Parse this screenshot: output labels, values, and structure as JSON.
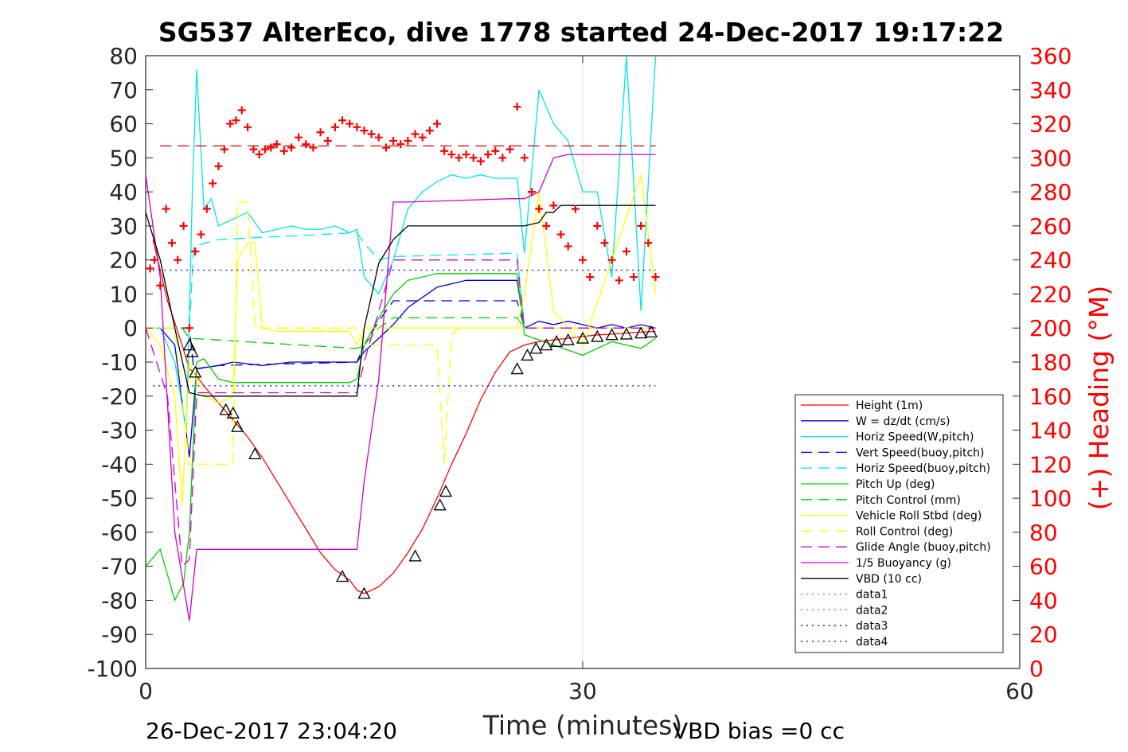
{
  "chart_data": {
    "type": "line",
    "title": "SG537 AlterEco, dive 1778 started 24-Dec-2017 19:17:22",
    "xlabel": "Time (minutes)",
    "ylabel_right": "(+) Heading (°M)",
    "xlim": [
      0,
      60
    ],
    "ylim_left": [
      -100,
      80
    ],
    "ylim_right": [
      0,
      360
    ],
    "x_ticks": [
      "0",
      "30",
      "60"
    ],
    "y_ticks_left": [
      "80",
      "70",
      "60",
      "50",
      "40",
      "30",
      "20",
      "10",
      "0",
      "-10",
      "-20",
      "-30",
      "-40",
      "-50",
      "-60",
      "-70",
      "-80",
      "-90",
      "-100"
    ],
    "y_ticks_right": [
      "360",
      "340",
      "320",
      "300",
      "280",
      "260",
      "240",
      "220",
      "200",
      "180",
      "160",
      "140",
      "120",
      "100",
      "80",
      "60",
      "40",
      "20",
      "0"
    ],
    "grid": "x-only at 30",
    "legend_position": "bottom-right",
    "footer_left": "26-Dec-2017 23:04:20",
    "footer_right": "VBD bias =0 cc",
    "series": [
      {
        "name": "Height (1m)",
        "color": "#ff0000",
        "style": "solid",
        "x": [
          0.5,
          1.5,
          2.5,
          3.0,
          3.3,
          4,
          5,
          6,
          7,
          8,
          9,
          10,
          11,
          12,
          13,
          14,
          14.5,
          15,
          15.5,
          16,
          17,
          18,
          19,
          20,
          21,
          22,
          23,
          24,
          25,
          26,
          27,
          28,
          29,
          30,
          31,
          32,
          33,
          34,
          35
        ],
        "y": [
          26,
          8,
          -5,
          -12,
          -13,
          -17,
          -22,
          -27,
          -32,
          -38,
          -45,
          -52,
          -59,
          -66,
          -71,
          -74,
          -77,
          -78,
          -77,
          -76,
          -72,
          -66,
          -59,
          -50,
          -40,
          -31,
          -21,
          -13,
          -7,
          -5,
          -4,
          -3.5,
          -3,
          -2.5,
          -2,
          -1.8,
          -1.5,
          -1.2,
          -1
        ]
      },
      {
        "name": "W = dz/dt (cm/s)",
        "color": "#0000cc",
        "style": "solid",
        "x": [
          0,
          1,
          2,
          3,
          3.5,
          5,
          6,
          8,
          10,
          12,
          13,
          14,
          14.5,
          15,
          16,
          17,
          18,
          19,
          20,
          21,
          22,
          23,
          24,
          25,
          25.5,
          26,
          27,
          28,
          29,
          30,
          31,
          32,
          33,
          34,
          35
        ],
        "y": [
          0,
          0,
          -5,
          -38,
          -12,
          -11,
          -10,
          -11,
          -10,
          -10,
          -10,
          -10,
          -10,
          -7,
          -3,
          1,
          6,
          9,
          12,
          13,
          14,
          14,
          14,
          14,
          14,
          0,
          2,
          1,
          2,
          1,
          0,
          1,
          0,
          1,
          0
        ]
      },
      {
        "name": "Horiz Speed(W,pitch)",
        "color": "#00e5e5",
        "style": "solid",
        "x": [
          0,
          1,
          2,
          2.8,
          3.2,
          3.5,
          4,
          4.5,
          5,
          6,
          7,
          8,
          9,
          10,
          11,
          12,
          13,
          14,
          14.5,
          15,
          16,
          17,
          18,
          19,
          20,
          21,
          22,
          23,
          24,
          25,
          25.5,
          26,
          27,
          28,
          29,
          30,
          31,
          32,
          33,
          34,
          35
        ],
        "y": [
          0,
          0,
          -10,
          -30,
          40,
          76,
          35,
          38,
          30,
          32,
          34,
          28,
          29,
          30,
          29,
          29,
          30,
          28,
          29,
          15,
          10,
          20,
          35,
          40,
          43,
          45,
          44,
          45,
          44,
          44,
          44,
          22,
          70,
          60,
          55,
          40,
          40,
          15,
          80,
          5,
          80
        ]
      },
      {
        "name": "Vert Speed(buoy,pitch)",
        "color": "#0000cc",
        "style": "dash",
        "x": [
          0,
          3,
          3.3,
          5,
          14.5,
          15,
          16,
          17,
          25.5,
          26,
          35
        ],
        "y": [
          0,
          0,
          -12,
          -11,
          -10,
          -5,
          2,
          8,
          8,
          0,
          0
        ]
      },
      {
        "name": "Horiz Speed(buoy,pitch)",
        "color": "#00e5e5",
        "style": "dash",
        "x": [
          3,
          3.3,
          5,
          14.5,
          15,
          16,
          17,
          25.5,
          26,
          35
        ],
        "y": [
          0,
          24,
          26,
          28,
          25,
          20,
          21,
          22,
          0,
          0
        ]
      },
      {
        "name": "Pitch Up (deg)",
        "color": "#00cc00",
        "style": "solid",
        "x": [
          0,
          1,
          2,
          2.6,
          3,
          3.5,
          4,
          5,
          6,
          8,
          10,
          12,
          14,
          14.5,
          15,
          16,
          17,
          18,
          20,
          22,
          24,
          25.5,
          26,
          28,
          30,
          32,
          34,
          35
        ],
        "y": [
          -70,
          -65,
          -80,
          -75,
          -60,
          -10,
          -9,
          -15,
          -16,
          -16,
          -16,
          -16,
          -16,
          -15,
          -5,
          3,
          10,
          14,
          16,
          16,
          16,
          16,
          -2,
          -5,
          -8,
          -4,
          -6,
          -3
        ]
      },
      {
        "name": "Pitch Control (mm)",
        "color": "#00cc00",
        "style": "dash",
        "x": [
          0,
          2.5,
          3,
          14.5,
          15,
          16,
          17,
          25.5,
          26,
          35
        ],
        "y": [
          0,
          0,
          -3,
          -6,
          -5,
          0,
          3,
          3,
          0,
          0
        ]
      },
      {
        "name": "Vehicle Roll Stbd (deg)",
        "color": "#ffff00",
        "style": "solid",
        "x": [
          0,
          1,
          2,
          2.5,
          3,
          4,
          5,
          6,
          6.3,
          7,
          7.5,
          8,
          9,
          10,
          12,
          14,
          14.5,
          15,
          16,
          18,
          20,
          21,
          22,
          24,
          25.5,
          26,
          27,
          28,
          30,
          32,
          34,
          35
        ],
        "y": [
          0,
          -5,
          -20,
          -52,
          -10,
          -20,
          -22,
          -20,
          20,
          25,
          25,
          0,
          -1,
          -1,
          -1,
          -1,
          -5,
          0,
          0,
          0,
          0,
          0,
          0,
          0,
          0,
          10,
          40,
          5,
          -5,
          20,
          45,
          10
        ]
      },
      {
        "name": "Roll Control (deg)",
        "color": "#ffff00",
        "style": "dash",
        "x": [
          0,
          2,
          3,
          3.5,
          6,
          6.3,
          7,
          7.5,
          14.5,
          15,
          20,
          20.5,
          21,
          21.5,
          35
        ],
        "y": [
          0,
          0,
          -40,
          -40,
          -40,
          37,
          37,
          0,
          0,
          -5,
          -5,
          -40,
          -2,
          0,
          0
        ]
      },
      {
        "name": "Glide Angle (buoy,pitch)",
        "color": "#cc00cc",
        "style": "dash",
        "x": [
          0,
          1.5,
          2.5,
          3,
          3.5,
          5,
          14.5,
          15,
          16,
          17,
          25.5,
          26,
          35
        ],
        "y": [
          0,
          -20,
          -70,
          -68,
          -19,
          -19,
          -19,
          -10,
          5,
          20,
          20,
          0,
          0
        ]
      },
      {
        "name": "1/5 Buoyancy (g)",
        "color": "#cc00cc",
        "style": "solid",
        "x": [
          0,
          1,
          2,
          3,
          3.5,
          14.5,
          15,
          16,
          17,
          18,
          25,
          26,
          27,
          28,
          29,
          30,
          35
        ],
        "y": [
          45,
          15,
          -60,
          -86,
          -65,
          -65,
          -45,
          -15,
          37,
          37,
          38,
          38,
          40,
          50,
          51,
          51,
          51
        ]
      },
      {
        "name": "VBD (10 cc)",
        "color": "#000000",
        "style": "solid",
        "x": [
          0,
          1,
          2,
          3,
          4,
          14,
          14.5,
          15,
          16,
          17,
          18,
          25,
          26,
          27,
          27.5,
          28,
          28.5,
          35
        ],
        "y": [
          34,
          20,
          0,
          -19,
          -20,
          -20,
          -20,
          0,
          19,
          26,
          30,
          30,
          30,
          31,
          34,
          34,
          36,
          36
        ]
      },
      {
        "name": "data1",
        "color": "#00cc00",
        "style": "dot",
        "x": [],
        "y": []
      },
      {
        "name": "data2",
        "color": "#00cc00",
        "style": "dot",
        "x": [],
        "y": []
      },
      {
        "name": "data3",
        "color": "#0000cc",
        "style": "dot",
        "x": [
          0.5,
          35
        ],
        "y": [
          17,
          17
        ]
      },
      {
        "name": "data4",
        "color": "#0000cc",
        "style": "dot",
        "x": [
          0.5,
          35
        ],
        "y": [
          -17,
          -17
        ]
      }
    ],
    "heading_reference": {
      "color": "#cc0000",
      "style": "dash",
      "x": [
        1,
        35
      ],
      "y_right": [
        307,
        307
      ]
    },
    "heading_points": {
      "color": "#ff0000",
      "marker": "+",
      "x": [
        0.3,
        0.6,
        1.0,
        1.4,
        1.8,
        2.2,
        2.6,
        3.0,
        3.4,
        3.8,
        4.2,
        4.6,
        5.0,
        5.4,
        5.8,
        6.2,
        6.6,
        7.0,
        7.4,
        7.8,
        8.2,
        8.6,
        9.0,
        9.5,
        10,
        10.5,
        11,
        11.5,
        12,
        12.5,
        13,
        13.5,
        14,
        14.5,
        15,
        15.5,
        16,
        16.5,
        17,
        17.5,
        18,
        18.5,
        19,
        19.5,
        20,
        20.5,
        21,
        21.5,
        22,
        22.5,
        23,
        23.5,
        24,
        24.5,
        25,
        25.5,
        26,
        26.5,
        27,
        27.5,
        28,
        28.5,
        29,
        29.5,
        30,
        30.5,
        31,
        31.5,
        32,
        32.5,
        33,
        33.5,
        34,
        34.5,
        35
      ],
      "y_right": [
        235,
        240,
        225,
        270,
        250,
        240,
        260,
        200,
        245,
        255,
        270,
        285,
        295,
        305,
        320,
        322,
        328,
        318,
        305,
        302,
        305,
        306,
        308,
        304,
        306,
        312,
        308,
        306,
        315,
        310,
        318,
        322,
        320,
        318,
        316,
        314,
        312,
        306,
        310,
        308,
        310,
        314,
        312,
        316,
        320,
        304,
        302,
        300,
        302,
        300,
        298,
        302,
        304,
        300,
        305,
        330,
        300,
        280,
        270,
        260,
        272,
        255,
        248,
        270,
        240,
        230,
        260,
        250,
        240,
        228,
        245,
        230,
        260,
        250,
        230
      ]
    },
    "triangle_markers": {
      "color": "#000000",
      "x": [
        3.0,
        3.2,
        3.4,
        5.5,
        6.0,
        6.3,
        7.5,
        13.5,
        15.0,
        18.5,
        20.2,
        20.6,
        25.5,
        26.2,
        26.8,
        27.5,
        28.2,
        29,
        30,
        31,
        32,
        33,
        34,
        34.7
      ],
      "y": [
        -5,
        -7,
        -13,
        -24,
        -25,
        -29,
        -37,
        -73,
        -78,
        -67,
        -52,
        -48,
        -12,
        -8,
        -6,
        -5,
        -4,
        -3.5,
        -3,
        -2.5,
        -2,
        -1.8,
        -1.5,
        -1.2
      ]
    }
  }
}
